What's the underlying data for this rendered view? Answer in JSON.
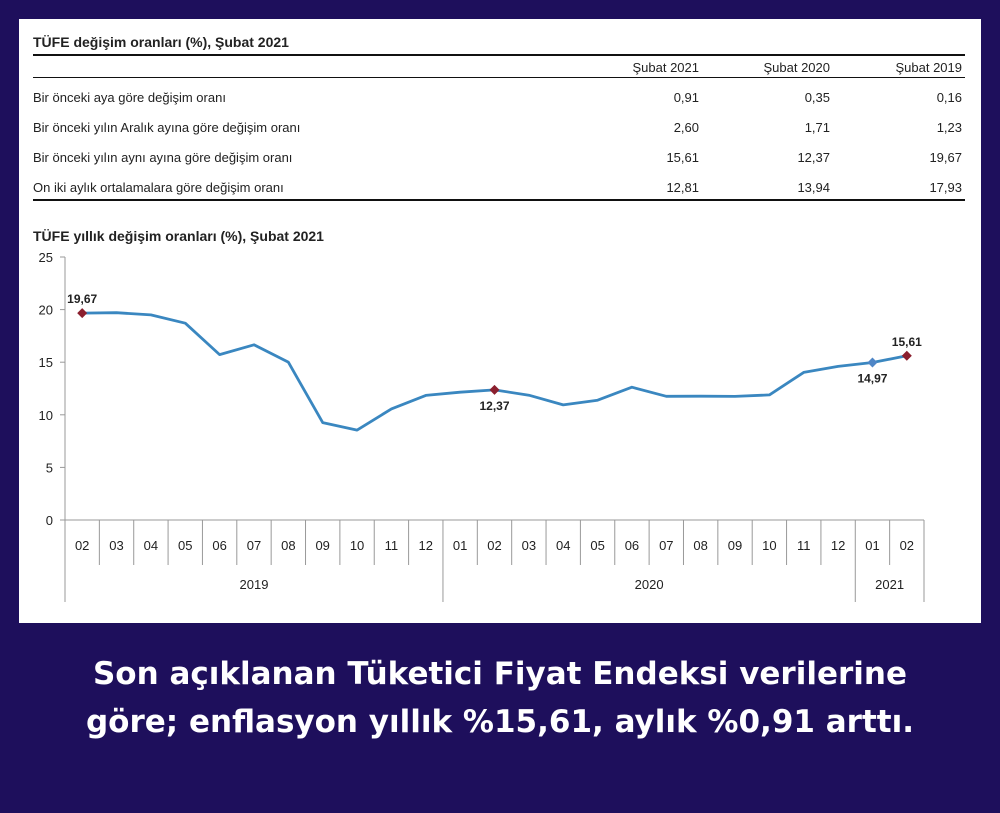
{
  "table": {
    "title": "TÜFE değişim oranları (%), Şubat 2021",
    "columns": [
      "Şubat 2021",
      "Şubat 2020",
      "Şubat 2019"
    ],
    "rows": [
      {
        "label": "Bir önceki aya göre değişim oranı",
        "values": [
          "0,91",
          "0,35",
          "0,16"
        ]
      },
      {
        "label": "Bir önceki yılın Aralık ayına göre değişim oranı",
        "values": [
          "2,60",
          "1,71",
          "1,23"
        ]
      },
      {
        "label": "Bir önceki yılın aynı ayına göre değişim oranı",
        "values": [
          "15,61",
          "12,37",
          "19,67"
        ]
      },
      {
        "label": "On iki aylık ortalamalara göre değişim oranı",
        "values": [
          "12,81",
          "13,94",
          "17,93"
        ]
      }
    ]
  },
  "chart_data": {
    "type": "line",
    "title": "TÜFE yıllık değişim oranları (%), Şubat 2021",
    "x": [
      "02",
      "03",
      "04",
      "05",
      "06",
      "07",
      "08",
      "09",
      "10",
      "11",
      "12",
      "01",
      "02",
      "03",
      "04",
      "05",
      "06",
      "07",
      "08",
      "09",
      "10",
      "11",
      "12",
      "01",
      "02"
    ],
    "years": [
      {
        "label": "2019",
        "count": 11
      },
      {
        "label": "2020",
        "count": 12
      },
      {
        "label": "2021",
        "count": 2
      }
    ],
    "values": [
      19.67,
      19.71,
      19.5,
      18.71,
      15.72,
      16.65,
      15.01,
      9.26,
      8.55,
      10.56,
      11.84,
      12.15,
      12.37,
      11.86,
      10.94,
      11.39,
      12.62,
      11.76,
      11.77,
      11.75,
      11.89,
      14.03,
      14.6,
      14.97,
      15.61
    ],
    "ylim": [
      0,
      25
    ],
    "yticks": [
      0,
      5,
      10,
      15,
      20,
      25
    ],
    "line_color": "#3a87c0",
    "marker_color": "#8b1f2e",
    "marker_color_alt": "#4f86c6",
    "annotations": [
      {
        "index": 0,
        "label": "19,67",
        "marker_color": "#8b1f2e",
        "position": "above"
      },
      {
        "index": 12,
        "label": "12,37",
        "marker_color": "#8b1f2e",
        "position": "below"
      },
      {
        "index": 23,
        "label": "14,97",
        "marker_color": "#4f86c6",
        "position": "below"
      },
      {
        "index": 24,
        "label": "15,61",
        "marker_color": "#8b1f2e",
        "position": "above"
      }
    ],
    "grid": false
  },
  "caption": {
    "line1": "Son açıklanan Tüketici Fiyat Endeksi verilerine",
    "line2": "göre; enflasyon yıllık %15,61, aylık %0,91 arttı."
  }
}
